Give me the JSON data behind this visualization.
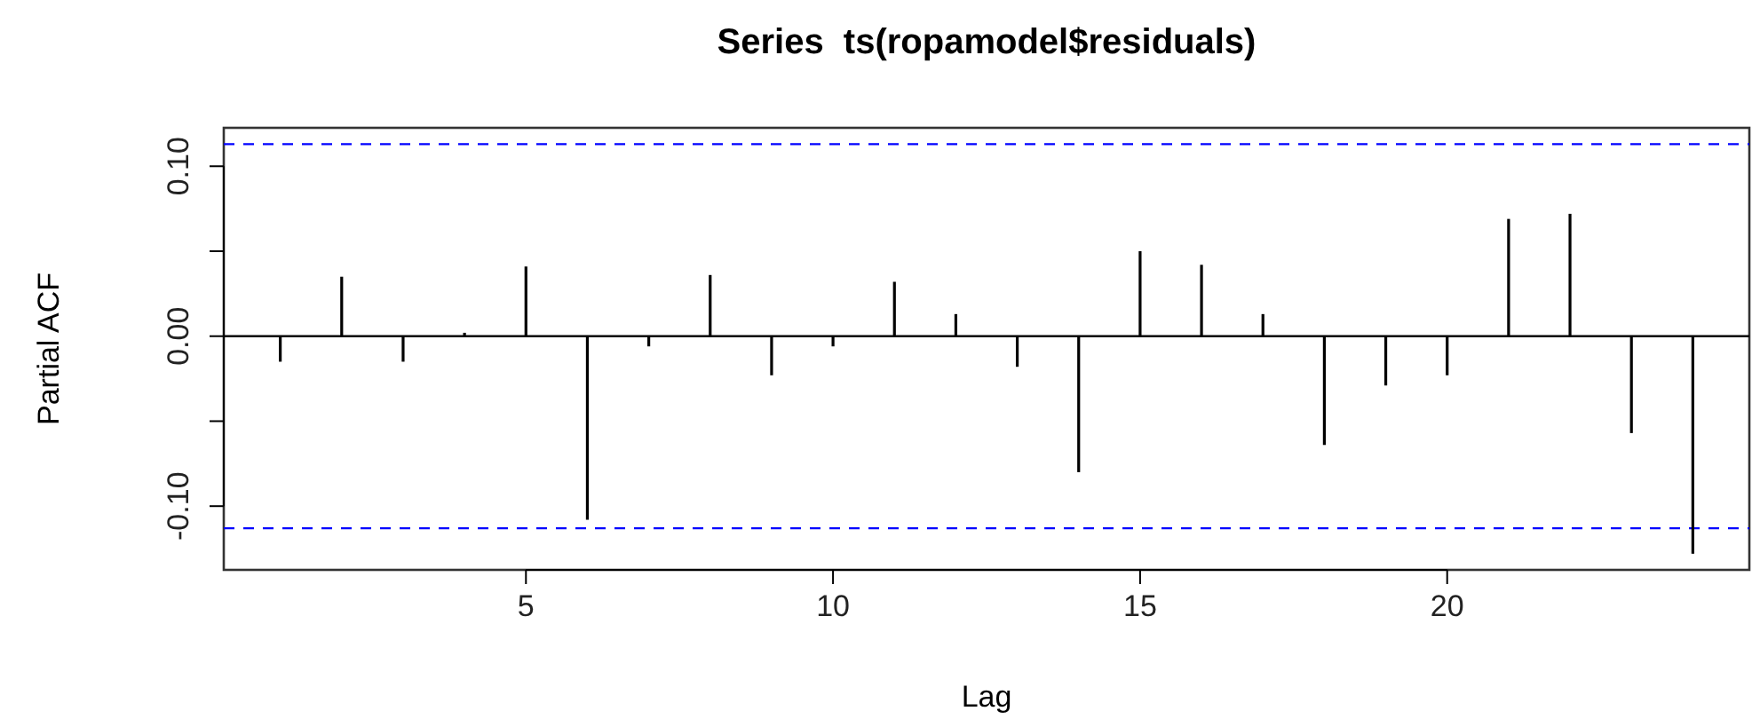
{
  "chart_data": {
    "type": "bar",
    "title": "Series  ts(ropamodel$residuals)",
    "xlabel": "Lag",
    "ylabel": "Partial ACF",
    "x": [
      1,
      2,
      3,
      4,
      5,
      6,
      7,
      8,
      9,
      10,
      11,
      12,
      13,
      14,
      15,
      16,
      17,
      18,
      19,
      20,
      21,
      22,
      23,
      24
    ],
    "values": [
      -0.015,
      0.035,
      -0.015,
      0.002,
      0.041,
      -0.108,
      -0.006,
      0.036,
      -0.023,
      -0.006,
      0.032,
      0.013,
      -0.018,
      -0.08,
      0.05,
      0.042,
      0.013,
      -0.064,
      -0.029,
      -0.023,
      0.069,
      0.072,
      -0.057,
      -0.128
    ],
    "color": "#000000",
    "xlim": [
      0.08,
      24.92
    ],
    "xticks": [
      5,
      10,
      15,
      20
    ],
    "ylim": [
      -0.1375,
      0.1226
    ],
    "yticks": [
      {
        "value": -0.1,
        "label": "-0.10"
      },
      {
        "value": -0.05,
        "label": null
      },
      {
        "value": 0,
        "label": "0.00"
      },
      {
        "value": 0.05,
        "label": null
      },
      {
        "value": 0.1,
        "label": "0.10"
      }
    ],
    "ref_lines": [
      {
        "axis": "y",
        "value": 0,
        "color": "#000000",
        "line_style": "solid"
      },
      {
        "axis": "y",
        "value": 0.113,
        "color": "#0000ff",
        "line_style": "dashed"
      },
      {
        "axis": "y",
        "value": -0.113,
        "color": "#0000ff",
        "line_style": "dashed"
      }
    ],
    "grid": false
  }
}
